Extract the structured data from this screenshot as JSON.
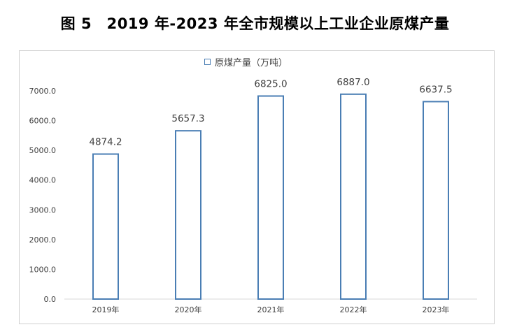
{
  "title": "图 5　2019 年-2023 年全市规模以上工业企业原煤产量",
  "legend": {
    "label": "原煤产量（万吨）"
  },
  "colors": {
    "bar_stroke": "#4a7eb4",
    "bar_fill": "#ffffff",
    "axis": "#d9d9d9",
    "text": "#404040"
  },
  "chart_data": {
    "type": "bar",
    "categories": [
      "2019年",
      "2020年",
      "2021年",
      "2022年",
      "2023年"
    ],
    "series": [
      {
        "name": "原煤产量（万吨）",
        "values": [
          4874.2,
          5657.3,
          6825.0,
          6887.0,
          6637.5
        ]
      }
    ],
    "data_labels": [
      "4874.2",
      "5657.3",
      "6825.0",
      "6887.0",
      "6637.5"
    ],
    "yticks": [
      "0.0",
      "1000.0",
      "2000.0",
      "3000.0",
      "4000.0",
      "5000.0",
      "6000.0",
      "7000.0"
    ],
    "ylim": [
      0,
      7000
    ],
    "grid": false,
    "legend_position": "top"
  }
}
